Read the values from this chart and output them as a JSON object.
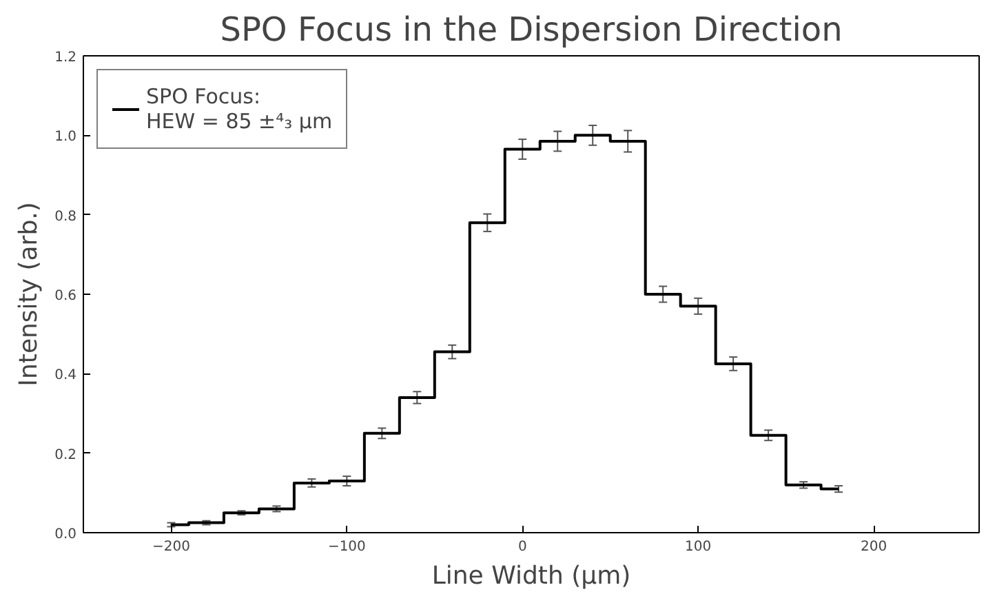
{
  "chart_data": {
    "type": "step",
    "title": "SPO Focus in the Dispersion Direction",
    "xlabel": "Line Width (µm)",
    "ylabel": "Intensity (arb.)",
    "x": [
      -200,
      -180,
      -160,
      -140,
      -120,
      -100,
      -80,
      -60,
      -40,
      -20,
      0,
      20,
      40,
      60,
      80,
      100,
      120,
      140,
      160,
      180
    ],
    "series": [
      {
        "name": "SPO Focus:\nHEW = 85 ±⁴₃ µm",
        "color": "#000000",
        "values": [
          0.02,
          0.025,
          0.05,
          0.06,
          0.125,
          0.13,
          0.25,
          0.34,
          0.455,
          0.78,
          0.965,
          0.985,
          1.0,
          0.985,
          0.6,
          0.57,
          0.425,
          0.245,
          0.12,
          0.11
        ],
        "errors": [
          0.005,
          0.005,
          0.005,
          0.007,
          0.01,
          0.012,
          0.013,
          0.015,
          0.017,
          0.022,
          0.025,
          0.025,
          0.025,
          0.027,
          0.02,
          0.02,
          0.017,
          0.013,
          0.008,
          0.008
        ]
      }
    ],
    "xlim": [
      -250,
      260
    ],
    "xticks": [
      -200,
      -100,
      0,
      100,
      200
    ],
    "ylim": [
      0,
      1.2
    ],
    "yticks": [
      {
        "value": 0,
        "label": "0.0"
      },
      {
        "value": 0.2,
        "label": "0.2"
      },
      {
        "value": 0.4,
        "label": "0.4"
      },
      {
        "value": 0.6,
        "label": "0.6"
      },
      {
        "value": 0.8,
        "label": "0.8"
      },
      {
        "value": 1.0,
        "label": "1.0"
      },
      {
        "value": 1.2,
        "label": "1.2"
      }
    ],
    "grid": false,
    "legend": "top left"
  }
}
